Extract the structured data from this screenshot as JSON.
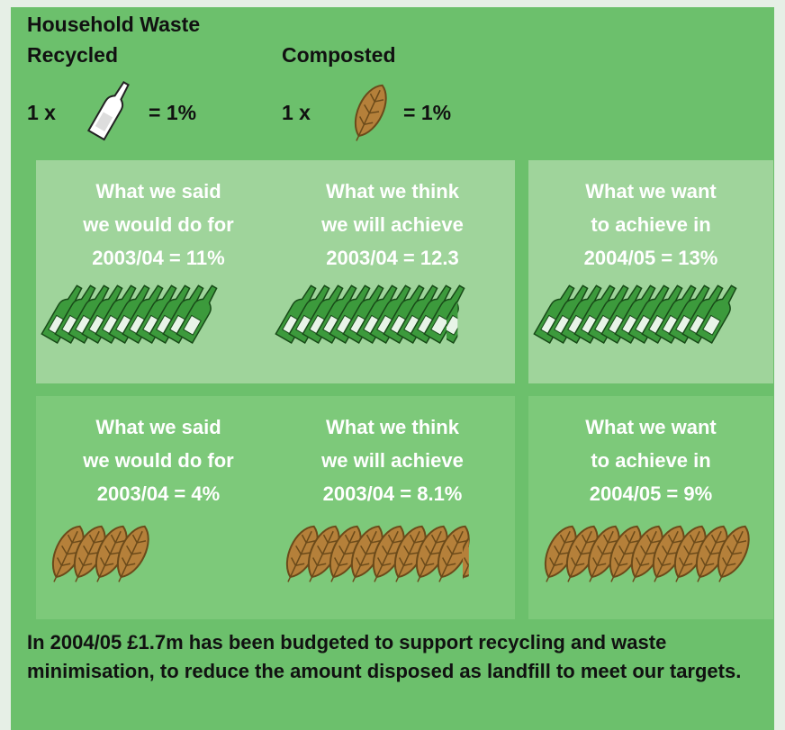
{
  "header": {
    "title": "Household Waste",
    "recycled": {
      "label": "Recycled",
      "prefix": "1 x",
      "equals": "= 1%"
    },
    "composted": {
      "label": "Composted",
      "prefix": "1 x",
      "equals": "= 1%"
    }
  },
  "panels": [
    [
      {
        "lines": [
          "What we said",
          "we would do for",
          "2003/04 = 11%"
        ],
        "icons": 11
      },
      {
        "lines": [
          "What we think",
          "we will achieve",
          "2003/04 = 12.3"
        ],
        "icons": 12.3
      },
      {
        "lines": [
          "What we want",
          "to achieve in",
          "2004/05 = 13%"
        ],
        "icons": 13
      }
    ],
    [
      {
        "lines": [
          "What we said",
          "we would do for",
          "2003/04 = 4%"
        ],
        "icons": 4
      },
      {
        "lines": [
          "What we think",
          "we will achieve",
          "2003/04 = 8.1%"
        ],
        "icons": 8.1
      },
      {
        "lines": [
          "What we want",
          "to achieve in",
          "2004/05 = 9%"
        ],
        "icons": 9
      }
    ]
  ],
  "footer": "In 2004/05 £1.7m has been budgeted to support recycling and waste minimisation, to reduce the amount disposed as landfill to meet our targets."
}
